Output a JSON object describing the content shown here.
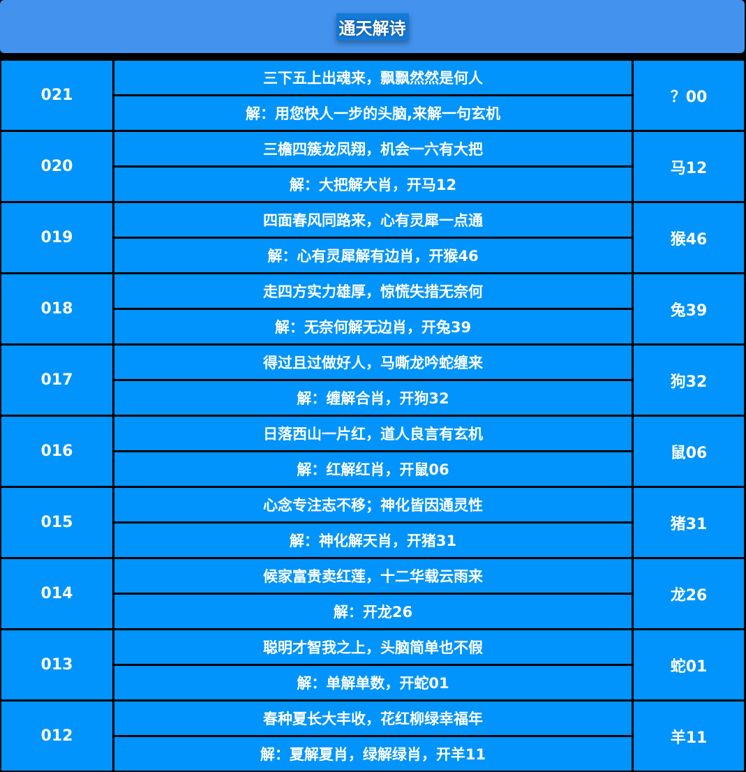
{
  "header": {
    "title": "通天解诗"
  },
  "rows": [
    {
      "issue": "021",
      "poem": "三下五上出魂来，飘飘然然是何人",
      "explain": "解：用您快人一步的头脑,来解一句玄机",
      "result": "？00"
    },
    {
      "issue": "020",
      "poem": "三檐四簇龙凤翔，机会一六有大把",
      "explain": "解：大把解大肖，开马12",
      "result": "马12"
    },
    {
      "issue": "019",
      "poem": "四面春风同路来，心有灵犀一点通",
      "explain": "解：心有灵犀解有边肖，开猴46",
      "result": "猴46"
    },
    {
      "issue": "018",
      "poem": "走四方实力雄厚，惊慌失措无奈何",
      "explain": "解：无奈何解无边肖，开兔39",
      "result": "兔39"
    },
    {
      "issue": "017",
      "poem": "得过且过做好人，马嘶龙吟蛇缠来",
      "explain": "解：缠解合肖，开狗32",
      "result": "狗32"
    },
    {
      "issue": "016",
      "poem": "日落西山一片红，道人良言有玄机",
      "explain": "解：红解红肖，开鼠06",
      "result": "鼠06"
    },
    {
      "issue": "015",
      "poem": "心念专注志不移；神化皆因通灵性",
      "explain": "解：神化解天肖，开猪31",
      "result": "猪31"
    },
    {
      "issue": "014",
      "poem": "候家富贵卖红莲，十二华载云雨来",
      "explain": "解：开龙26",
      "result": "龙26"
    },
    {
      "issue": "013",
      "poem": "聪明才智我之上，头脑简单也不假",
      "explain": "解：单解单数，开蛇01",
      "result": "蛇01"
    },
    {
      "issue": "012",
      "poem": "春种夏长大丰收，花红柳绿幸福年",
      "explain": "解：夏解夏肖，绿解绿肖，开羊11",
      "result": "羊11"
    }
  ],
  "colors": {
    "header": "#4393ee",
    "cell": "#0094fc",
    "border": "#000000"
  }
}
